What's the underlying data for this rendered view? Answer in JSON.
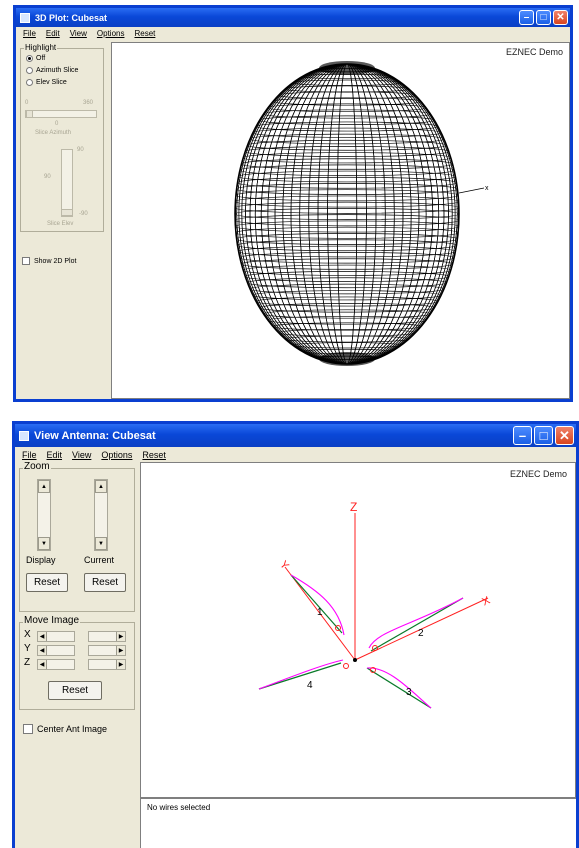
{
  "window1": {
    "title": "3D Plot: Cubesat",
    "menu": [
      "File",
      "Edit",
      "View",
      "Options",
      "Reset"
    ],
    "demo_label": "EZNEC Demo",
    "highlight": {
      "legend": "Highlight",
      "options": [
        {
          "label": "Off",
          "selected": true
        },
        {
          "label": "Azimuth Slice",
          "selected": false
        },
        {
          "label": "Elev Slice",
          "selected": false
        }
      ]
    },
    "azimuth_slider": {
      "min_label": "0",
      "max_label": "360",
      "value_label": "0",
      "caption": "Slice Azimuth"
    },
    "elevation_slider": {
      "top_label": "90",
      "mid_label": "90",
      "bottom_label": "-90",
      "caption": "Slice Elev"
    },
    "show_2d_plot": {
      "label": "Show 2D Plot",
      "checked": false
    }
  },
  "window2": {
    "title": "View Antenna: Cubesat",
    "menu": [
      "File",
      "Edit",
      "View",
      "Options",
      "Reset"
    ],
    "demo_label": "EZNEC Demo",
    "zoom": {
      "legend": "Zoom",
      "display_label": "Display",
      "current_label": "Current",
      "reset_label": "Reset"
    },
    "move_image": {
      "legend": "Move Image",
      "axes": [
        "X",
        "Y",
        "Z"
      ],
      "reset_label": "Reset"
    },
    "center_ant_image": {
      "label": "Center Ant Image",
      "checked": false
    },
    "axis_labels": {
      "x": "X",
      "y": "Y",
      "z": "Z"
    },
    "wire_labels": [
      "1",
      "2",
      "3",
      "4"
    ],
    "status_text": "No wires selected",
    "colors": {
      "axis": "#ff2020",
      "wire": "#0a7a2a",
      "current": "#ff00ff"
    }
  }
}
